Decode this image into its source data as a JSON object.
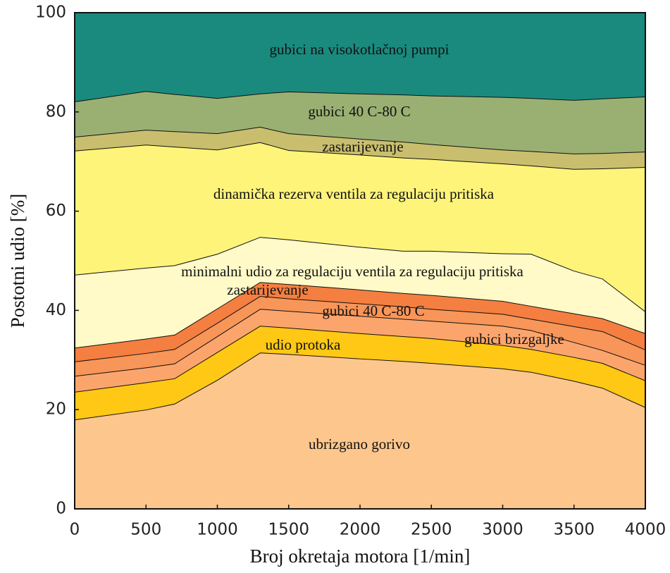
{
  "chart_data": {
    "type": "stacked_area",
    "xlabel": "Broj okretaja motora [1/min]",
    "ylabel": "Postotni udio [%]",
    "x": [
      0,
      500,
      700,
      1000,
      1300,
      1500,
      2000,
      2300,
      2500,
      3000,
      3200,
      3500,
      3700,
      4000
    ],
    "xlim": [
      0,
      4000
    ],
    "xticks": [
      0,
      500,
      1000,
      1500,
      2000,
      2500,
      3000,
      3500,
      4000
    ],
    "ylim": [
      0,
      100
    ],
    "yticks": [
      0,
      20,
      40,
      60,
      80,
      100
    ],
    "series": [
      {
        "name": "ubrizgano gorivo",
        "color": "#fdc68d",
        "values": [
          18,
          20,
          21.2,
          26,
          31.5,
          31.2,
          30.3,
          29.8,
          29.4,
          28.3,
          27.6,
          25.8,
          24.4,
          20.5
        ]
      },
      {
        "name": "udio protoka",
        "color": "#fec815",
        "values": [
          5.6,
          5.5,
          5.1,
          5.6,
          5.4,
          5.3,
          5.1,
          5,
          5,
          4.7,
          4.6,
          4.8,
          5,
          5.4
        ]
      },
      {
        "name": "gubici brizgaljke",
        "color": "#fba56d",
        "values": [
          3.2,
          3,
          3,
          3.2,
          3.4,
          3.4,
          3.5,
          3.5,
          3.5,
          3.9,
          3.8,
          3,
          2.6,
          3.1
        ]
      },
      {
        "name": "gubici 40 C-80 C",
        "color": "#f89558",
        "values": [
          2.9,
          2.9,
          2.9,
          2.7,
          2.6,
          2.5,
          2.5,
          2.5,
          2.4,
          2.4,
          2.3,
          3.2,
          3.8,
          3.1
        ]
      },
      {
        "name": "zastarijevanje",
        "color": "#f47f40",
        "values": [
          2.8,
          2.9,
          2.9,
          2.9,
          2.8,
          2.9,
          2.8,
          2.7,
          2.8,
          2.6,
          2.6,
          2.6,
          2.6,
          3.3
        ]
      },
      {
        "name": "minimalni udio za regulaciju ventila za regulaciju pritiska",
        "color": "#fffac8",
        "values": [
          14.7,
          14.3,
          14,
          11,
          9.1,
          9,
          8.6,
          8.5,
          8.9,
          9.6,
          10.5,
          8.6,
          8,
          4.4
        ]
      },
      {
        "name": "dinamička rezerva ventila za regulaciju pritiska",
        "color": "#fff47a",
        "values": [
          25,
          24.8,
          23.9,
          21,
          19.1,
          18,
          18.6,
          18.8,
          18.5,
          18.1,
          17.8,
          20.5,
          22.2,
          29.1
        ]
      },
      {
        "name": "zastarijevanje",
        "color": "#c9be6e",
        "values": [
          2.8,
          3,
          3.1,
          3.3,
          3.1,
          3.4,
          3.2,
          3.2,
          3,
          2.8,
          2.9,
          3.1,
          3.1,
          3.1
        ]
      },
      {
        "name": "gubici 40 C-80 C",
        "color": "#9ab073",
        "values": [
          7.1,
          7.8,
          7.5,
          7.1,
          6.7,
          8.4,
          9.1,
          9.5,
          9.8,
          10.6,
          10.7,
          10.8,
          11,
          11.1
        ]
      },
      {
        "name": "gubici na visokotlačnoj pumpi",
        "color": "#1a8a7e",
        "values": [
          17.9,
          15.8,
          16.4,
          17.2,
          16.3,
          15.9,
          16.3,
          16.5,
          16.7,
          17,
          17.2,
          17.6,
          17.3,
          16.9
        ]
      }
    ]
  }
}
